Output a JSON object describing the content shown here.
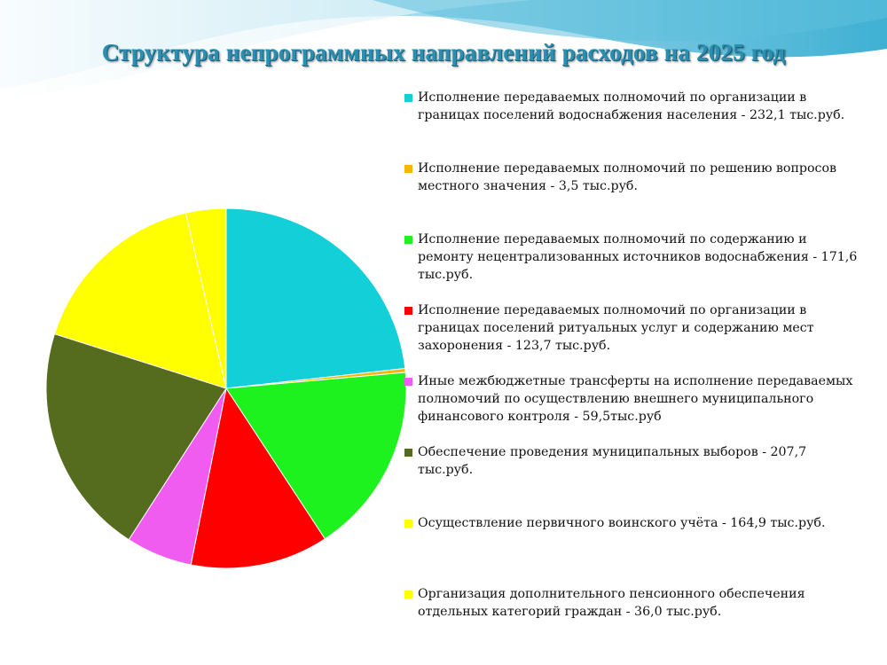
{
  "title": "Структура непрограммных направлений расходов на 2025 год",
  "colors": {
    "wave_dark": "#4ab6d6",
    "wave_light": "#bfe6f2",
    "title": "#2a8fb0"
  },
  "chart_data": {
    "type": "pie",
    "title": "Структура непрограммных направлений расходов на 2025 год",
    "unit": "тыс.руб.",
    "legend_position": "right",
    "slices": [
      {
        "label": "Исполнение передаваемых полномочий по организации в границах поселений водоснабжения населения - 232,1 тыс.руб.",
        "value": 232.1,
        "color": "#12cfd8"
      },
      {
        "label": "Исполнение передаваемых полномочий по решению вопросов местного значения - 3,5 тыс.руб.",
        "value": 3.5,
        "color": "#f2b700"
      },
      {
        "label": "Исполнение передаваемых полномочий по содержанию и ремонту нецентрализованных источников водоснабжения - 171,6 тыс.руб.",
        "value": 171.6,
        "color": "#1ef21e"
      },
      {
        "label": "Исполнение передаваемых полномочий по организации в границах поселений ритуальных услуг и содержанию мест захоронения - 123,7 тыс.руб.",
        "value": 123.7,
        "color": "#ff0000"
      },
      {
        "label": "Иные межбюджетные трансферты на исполнение передаваемых полномочий по осуществлению внешнего муниципального финансового контроля - 59,5тыс.руб",
        "value": 59.5,
        "color": "#f05cf0"
      },
      {
        "label": "Обеспечение проведения муниципальных выборов - 207,7 тыс.руб.",
        "value": 207.7,
        "color": "#556b1e"
      },
      {
        "label": "Осуществление первичного воинского учёта - 164,9 тыс.руб.",
        "value": 164.9,
        "color": "#ffff00"
      },
      {
        "label": "Организация дополнительного пенсионного обеспечения отдельных категорий граждан - 36,0 тыс.руб.",
        "value": 36.0,
        "color": "#ffff00"
      }
    ]
  }
}
